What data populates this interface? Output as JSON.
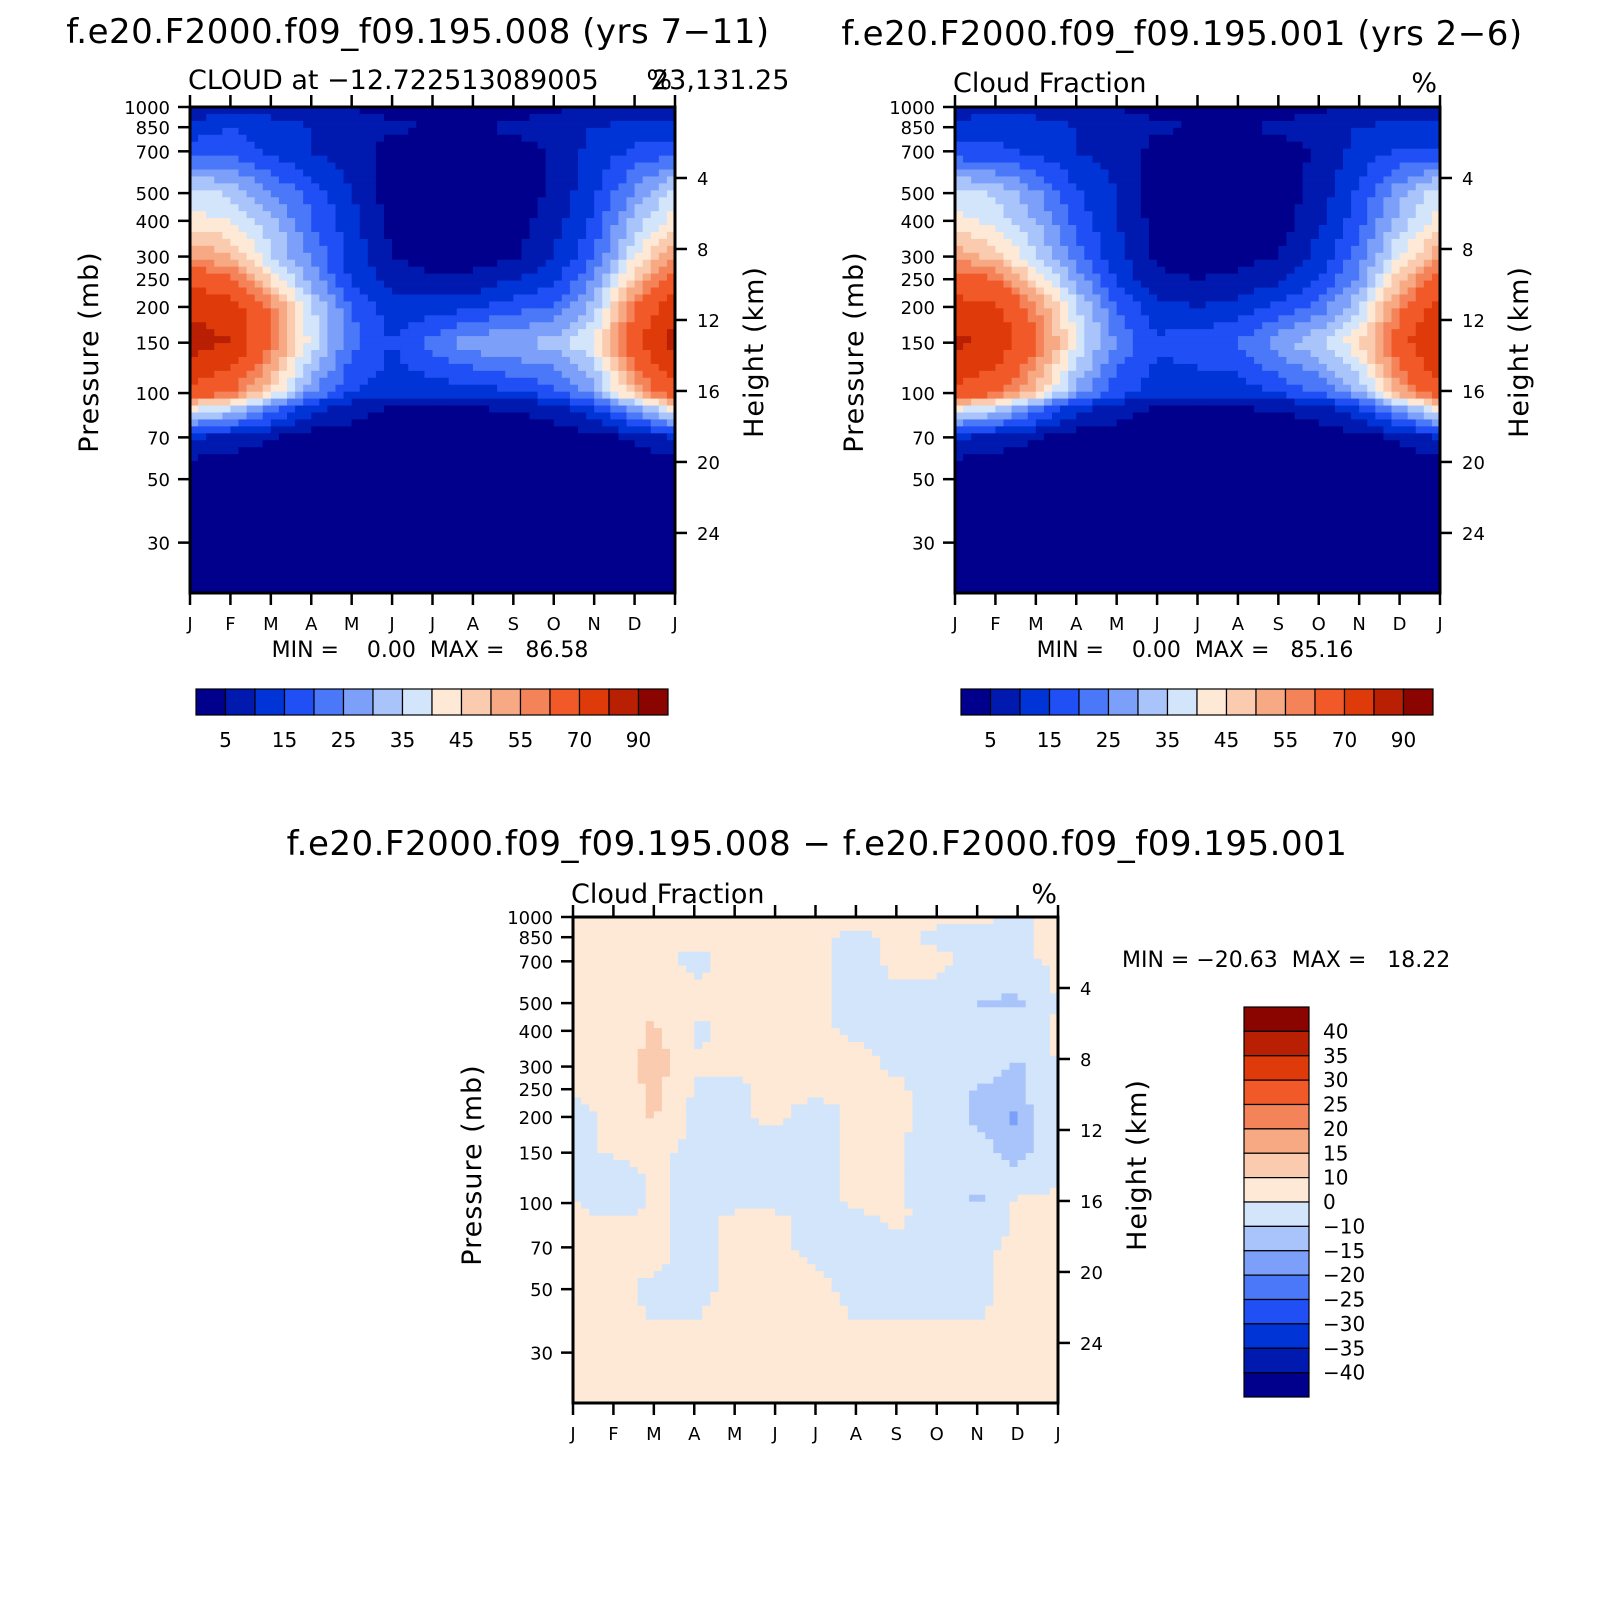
{
  "palette": {
    "seq": [
      "#00008C",
      "#0019AF",
      "#0034D6",
      "#1F4FF5",
      "#4A78F8",
      "#7CA0F9",
      "#A9C4FA",
      "#D2E5FB",
      "#FDE9D6",
      "#FACBAF",
      "#F7A983",
      "#F5835A",
      "#F15A28",
      "#DE3A0A",
      "#B91F03",
      "#8A0400"
    ],
    "diff": [
      "#00008C",
      "#0019AF",
      "#0034D6",
      "#1F4FF5",
      "#4A78F8",
      "#7CA0F9",
      "#A9C4FA",
      "#D2E5FB",
      "#FDE9D6",
      "#FACBAF",
      "#F7A983",
      "#F5835A",
      "#F15A28",
      "#DE3A0A",
      "#B91F03",
      "#8A0400"
    ]
  },
  "chart_data": [
    {
      "type": "heatmap",
      "title": "f.e20.F2000.f09_f09.195.008 (yrs 7−11)",
      "left_subtitle": "CLOUD at −12.722513089005",
      "right_subtitle": "23,131.25",
      "units": "%",
      "ylabel": "Pressure (mb)",
      "ylabel_right": "Height (km)",
      "x": [
        "J",
        "F",
        "M",
        "A",
        "M",
        "J",
        "J",
        "A",
        "S",
        "O",
        "N",
        "D",
        "J"
      ],
      "y_pressure_ticks": [
        "30",
        "50",
        "70",
        "100",
        "150",
        "200",
        "250",
        "300",
        "400",
        "500",
        "700",
        "850",
        "1000"
      ],
      "y_height_ticks": [
        "24",
        "20",
        "16",
        "12",
        "8",
        "4"
      ],
      "y_height_values": [
        24,
        20,
        16,
        12,
        8,
        4
      ],
      "stats": "MIN =    0.00  MAX =   86.58",
      "colorbar_labels": [
        "5",
        "15",
        "25",
        "35",
        "45",
        "55",
        "70",
        "90"
      ],
      "levels": [
        5,
        10,
        15,
        20,
        25,
        30,
        35,
        40,
        45,
        50,
        55,
        60,
        70,
        80,
        90
      ],
      "field": {
        "pressure": [
          20,
          30,
          50,
          70,
          90,
          100,
          150,
          200,
          250,
          300,
          400,
          500,
          700,
          850,
          1000
        ],
        "months": [
          0,
          1,
          2,
          3,
          4,
          5,
          6,
          7,
          8,
          9,
          10,
          11,
          12
        ],
        "values": [
          [
            0,
            0,
            0,
            0,
            0,
            0,
            0,
            0,
            0,
            0,
            0,
            0,
            0
          ],
          [
            0,
            0,
            0,
            0,
            0,
            0,
            0,
            0,
            0,
            0,
            0,
            0,
            0
          ],
          [
            0,
            0,
            0,
            0,
            0,
            0,
            0,
            0,
            0,
            0,
            0,
            0,
            0
          ],
          [
            10,
            8,
            5,
            3,
            2,
            1,
            1,
            1,
            1,
            2,
            3,
            6,
            10
          ],
          [
            45,
            38,
            25,
            12,
            8,
            5,
            5,
            5,
            6,
            8,
            15,
            30,
            45
          ],
          [
            68,
            60,
            45,
            25,
            15,
            12,
            12,
            12,
            15,
            18,
            28,
            50,
            68
          ],
          [
            84,
            80,
            60,
            38,
            22,
            15,
            22,
            28,
            30,
            32,
            40,
            68,
            84
          ],
          [
            78,
            76,
            58,
            36,
            20,
            12,
            12,
            14,
            18,
            20,
            32,
            60,
            78
          ],
          [
            66,
            62,
            44,
            28,
            14,
            8,
            6,
            6,
            10,
            14,
            25,
            48,
            66
          ],
          [
            55,
            50,
            36,
            24,
            13,
            5,
            3,
            3,
            4,
            10,
            20,
            40,
            55
          ],
          [
            42,
            40,
            32,
            20,
            12,
            3,
            1,
            1,
            2,
            8,
            16,
            32,
            42
          ],
          [
            38,
            34,
            25,
            18,
            10,
            2,
            1,
            1,
            2,
            6,
            14,
            26,
            38
          ],
          [
            18,
            18,
            14,
            10,
            8,
            2,
            1,
            1,
            2,
            6,
            12,
            16,
            18
          ],
          [
            12,
            15,
            12,
            10,
            8,
            6,
            5,
            5,
            6,
            8,
            10,
            12,
            12
          ],
          [
            6,
            8,
            8,
            6,
            5,
            3,
            1,
            1,
            2,
            4,
            6,
            6,
            6
          ]
        ]
      }
    },
    {
      "type": "heatmap",
      "title": "f.e20.F2000.f09_f09.195.001 (yrs 2−6)",
      "left_subtitle": "Cloud Fraction",
      "right_subtitle": "%",
      "ylabel": "Pressure (mb)",
      "ylabel_right": "Height (km)",
      "x": [
        "J",
        "F",
        "M",
        "A",
        "M",
        "J",
        "J",
        "A",
        "S",
        "O",
        "N",
        "D",
        "J"
      ],
      "y_pressure_ticks": [
        "30",
        "50",
        "70",
        "100",
        "150",
        "200",
        "250",
        "300",
        "400",
        "500",
        "700",
        "850",
        "1000"
      ],
      "y_height_ticks": [
        "24",
        "20",
        "16",
        "12",
        "8",
        "4"
      ],
      "y_height_values": [
        24,
        20,
        16,
        12,
        8,
        4
      ],
      "stats": "MIN =    0.00  MAX =   85.16",
      "colorbar_labels": [
        "5",
        "15",
        "25",
        "35",
        "45",
        "55",
        "70",
        "90"
      ],
      "levels": [
        5,
        10,
        15,
        20,
        25,
        30,
        35,
        40,
        45,
        50,
        55,
        60,
        70,
        80,
        90
      ],
      "field": {
        "pressure": [
          20,
          30,
          50,
          70,
          90,
          100,
          150,
          200,
          250,
          300,
          400,
          500,
          700,
          850,
          1000
        ],
        "months": [
          0,
          1,
          2,
          3,
          4,
          5,
          6,
          7,
          8,
          9,
          10,
          11,
          12
        ],
        "values": [
          [
            0,
            0,
            0,
            0,
            0,
            0,
            0,
            0,
            0,
            0,
            0,
            0,
            0
          ],
          [
            0,
            0,
            0,
            0,
            0,
            0,
            0,
            0,
            0,
            0,
            0,
            0,
            0
          ],
          [
            0,
            0,
            0,
            0,
            0,
            0,
            0,
            0,
            0,
            0,
            0,
            0,
            0
          ],
          [
            10,
            8,
            5,
            3,
            2,
            1,
            1,
            1,
            1,
            2,
            3,
            6,
            10
          ],
          [
            45,
            38,
            25,
            12,
            8,
            5,
            5,
            5,
            6,
            8,
            15,
            30,
            45
          ],
          [
            68,
            62,
            48,
            28,
            17,
            12,
            12,
            12,
            16,
            20,
            30,
            52,
            68
          ],
          [
            82,
            78,
            62,
            40,
            24,
            16,
            18,
            20,
            28,
            34,
            44,
            66,
            82
          ],
          [
            74,
            72,
            56,
            36,
            20,
            12,
            10,
            12,
            16,
            22,
            34,
            58,
            74
          ],
          [
            64,
            60,
            44,
            28,
            14,
            6,
            5,
            6,
            9,
            15,
            26,
            48,
            64
          ],
          [
            54,
            48,
            36,
            22,
            12,
            4,
            3,
            3,
            5,
            12,
            22,
            40,
            54
          ],
          [
            42,
            38,
            30,
            18,
            10,
            3,
            1,
            1,
            2,
            9,
            18,
            32,
            42
          ],
          [
            38,
            34,
            26,
            16,
            10,
            2,
            1,
            1,
            2,
            7,
            16,
            28,
            38
          ],
          [
            16,
            16,
            14,
            10,
            8,
            3,
            1,
            1,
            2,
            6,
            12,
            16,
            16
          ],
          [
            12,
            14,
            12,
            10,
            8,
            6,
            5,
            5,
            6,
            8,
            10,
            12,
            12
          ],
          [
            6,
            8,
            8,
            6,
            5,
            3,
            1,
            1,
            2,
            4,
            6,
            6,
            6
          ]
        ]
      }
    },
    {
      "type": "heatmap",
      "title": "f.e20.F2000.f09_f09.195.008 − f.e20.F2000.f09_f09.195.001",
      "left_subtitle": "Cloud Fraction",
      "right_subtitle": "%",
      "ylabel": "Pressure (mb)",
      "ylabel_right": "Height (km)",
      "x": [
        "J",
        "F",
        "M",
        "A",
        "M",
        "J",
        "J",
        "A",
        "S",
        "O",
        "N",
        "D",
        "J"
      ],
      "y_pressure_ticks": [
        "30",
        "50",
        "70",
        "100",
        "150",
        "200",
        "250",
        "300",
        "400",
        "500",
        "700",
        "850",
        "1000"
      ],
      "y_height_ticks": [
        "24",
        "20",
        "16",
        "12",
        "8",
        "4"
      ],
      "y_height_values": [
        24,
        20,
        16,
        12,
        8,
        4
      ],
      "stats": "MIN = −20.63  MAX =   18.22",
      "colorbar_labels": [
        "40",
        "35",
        "30",
        "25",
        "20",
        "15",
        "10",
        "0",
        "−10",
        "−15",
        "−20",
        "−25",
        "−30",
        "−35",
        "−40"
      ],
      "levels": [
        -40,
        -35,
        -30,
        -25,
        -20,
        -15,
        -10,
        0,
        10,
        15,
        20,
        25,
        30,
        35,
        40
      ],
      "field": {
        "pressure": [
          20,
          30,
          50,
          70,
          90,
          100,
          150,
          200,
          250,
          300,
          400,
          500,
          700,
          850,
          1000
        ],
        "months": [
          0,
          1,
          2,
          3,
          4,
          5,
          6,
          7,
          8,
          9,
          10,
          11,
          12
        ],
        "values": [
          [
            1,
            1,
            1,
            1,
            1,
            1,
            1,
            1,
            1,
            1,
            1,
            1,
            1
          ],
          [
            1,
            1,
            1,
            1,
            1,
            1,
            1,
            1,
            1,
            1,
            1,
            1,
            1
          ],
          [
            1,
            1,
            -1,
            -1,
            1,
            1,
            1,
            -1,
            -1,
            -1,
            -1,
            1,
            1
          ],
          [
            1,
            1,
            2,
            -2,
            1,
            1,
            -1,
            -1,
            -1,
            -1,
            -1,
            1,
            1
          ],
          [
            1,
            2,
            1,
            -2,
            1,
            1,
            -1,
            -1,
            1,
            -2,
            -4,
            1,
            1
          ],
          [
            1,
            -11,
            2,
            -3,
            -2,
            -2,
            -2,
            1,
            1,
            -3,
            -12,
            2,
            1
          ],
          [
            -1,
            1,
            2,
            -2,
            -1,
            -2,
            -1,
            1,
            1,
            -3,
            -6,
            -14,
            -1
          ],
          [
            -2,
            1,
            11,
            -2,
            -1,
            1,
            -2,
            1,
            1,
            -2,
            -12,
            -16,
            -2
          ],
          [
            1,
            2,
            13,
            -1,
            -1,
            1,
            1,
            1,
            1,
            -2,
            -11,
            -12,
            1
          ],
          [
            1,
            2,
            16,
            1,
            1,
            1,
            1,
            2,
            -1,
            -1,
            -4,
            -12,
            1
          ],
          [
            1,
            1,
            12,
            -1,
            1,
            1,
            1,
            -1,
            -1,
            -1,
            -3,
            -3,
            1
          ],
          [
            1,
            1,
            8,
            1,
            1,
            1,
            1,
            -1,
            -1,
            -1,
            -11,
            -12,
            1
          ],
          [
            1,
            1,
            1,
            -1,
            1,
            1,
            1,
            -2,
            1,
            1,
            -1,
            -1,
            1
          ],
          [
            1,
            1,
            1,
            1,
            1,
            1,
            1,
            -1,
            1,
            -1,
            -1,
            -1,
            1
          ],
          [
            1,
            1,
            1,
            1,
            1,
            1,
            1,
            1,
            1,
            1,
            1,
            -1,
            1
          ]
        ]
      }
    }
  ]
}
